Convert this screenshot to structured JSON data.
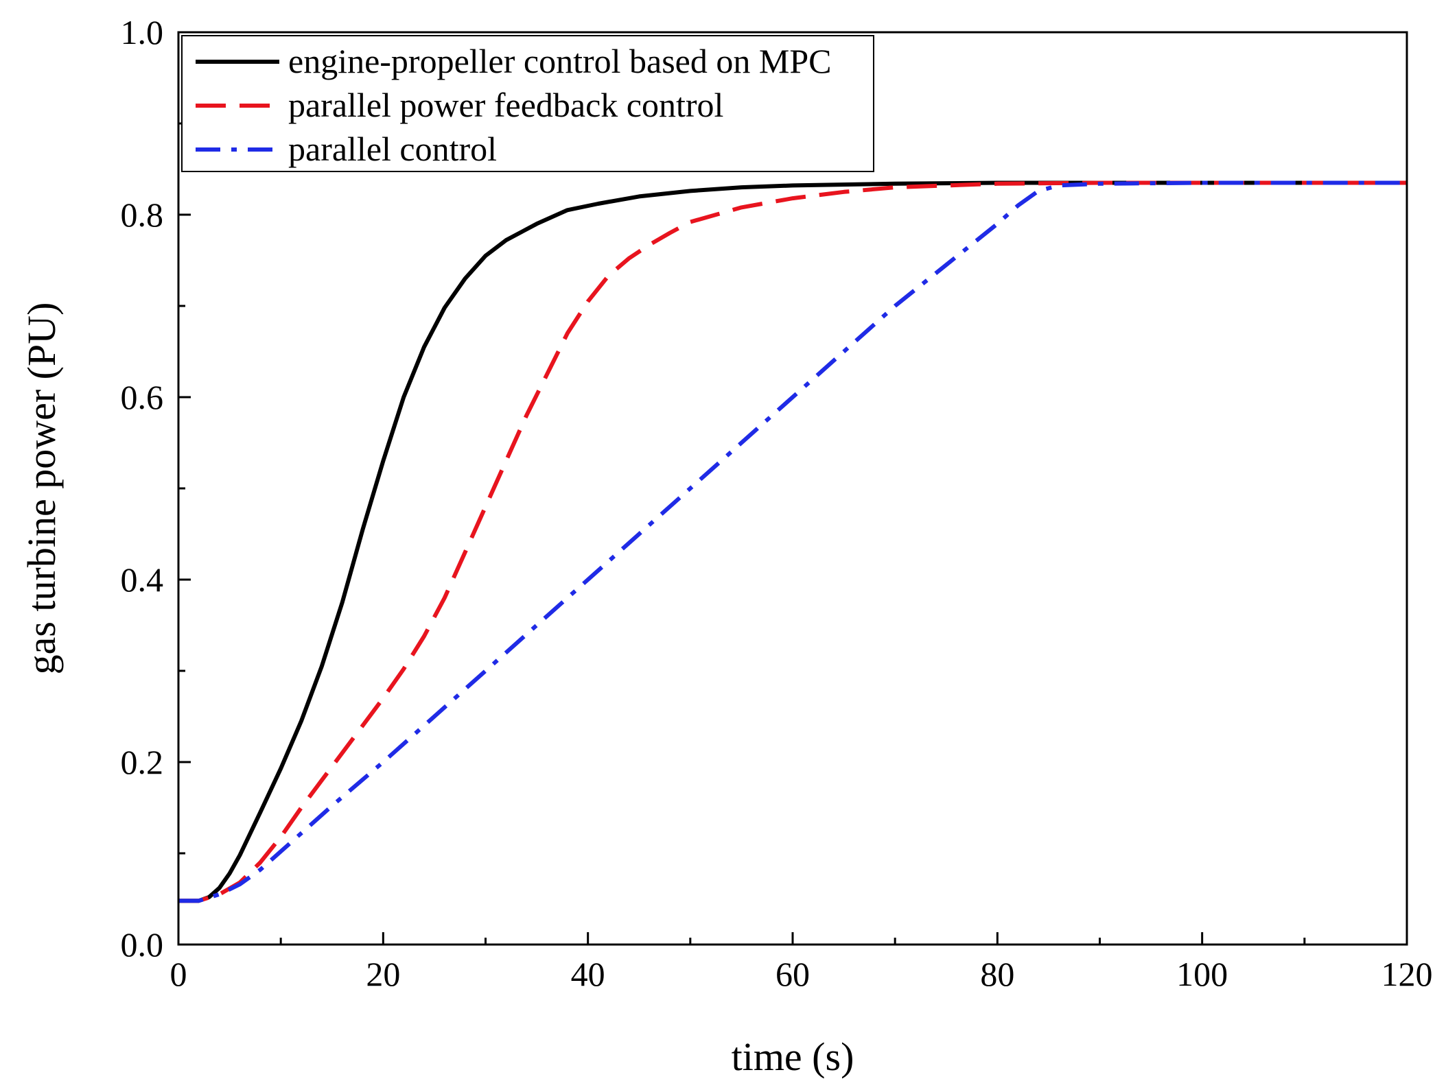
{
  "chart_data": {
    "type": "line",
    "title": "",
    "xlabel": "time (s)",
    "ylabel": "gas turbine power (PU)",
    "xlim": [
      0,
      120
    ],
    "ylim": [
      0.0,
      1.0
    ],
    "xticks": [
      0,
      20,
      40,
      60,
      80,
      100,
      120
    ],
    "xtick_labels": [
      "0",
      "20",
      "40",
      "60",
      "80",
      "100",
      "120"
    ],
    "yticks": [
      0.0,
      0.2,
      0.4,
      0.6,
      0.8,
      1.0
    ],
    "ytick_labels": [
      "0.0",
      "0.2",
      "0.4",
      "0.6",
      "0.8",
      "1.0"
    ],
    "legend_position": "top-left",
    "grid": false,
    "series": [
      {
        "name": "engine-propeller control based on MPC",
        "color": "#000000",
        "style": "solid",
        "points": [
          [
            0,
            0.048
          ],
          [
            2,
            0.048
          ],
          [
            3,
            0.052
          ],
          [
            4,
            0.062
          ],
          [
            5,
            0.078
          ],
          [
            6,
            0.098
          ],
          [
            8,
            0.145
          ],
          [
            10,
            0.193
          ],
          [
            12,
            0.245
          ],
          [
            14,
            0.305
          ],
          [
            16,
            0.375
          ],
          [
            18,
            0.455
          ],
          [
            20,
            0.53
          ],
          [
            22,
            0.6
          ],
          [
            24,
            0.655
          ],
          [
            26,
            0.698
          ],
          [
            28,
            0.73
          ],
          [
            30,
            0.755
          ],
          [
            32,
            0.772
          ],
          [
            35,
            0.79
          ],
          [
            38,
            0.805
          ],
          [
            41,
            0.812
          ],
          [
            45,
            0.82
          ],
          [
            50,
            0.826
          ],
          [
            55,
            0.83
          ],
          [
            60,
            0.832
          ],
          [
            70,
            0.834
          ],
          [
            80,
            0.835
          ],
          [
            90,
            0.835
          ],
          [
            100,
            0.835
          ],
          [
            120,
            0.835
          ]
        ]
      },
      {
        "name": "parallel power feedback control",
        "color": "#e8141e",
        "style": "dashed",
        "points": [
          [
            0,
            0.048
          ],
          [
            2,
            0.048
          ],
          [
            4,
            0.055
          ],
          [
            6,
            0.068
          ],
          [
            8,
            0.09
          ],
          [
            10,
            0.118
          ],
          [
            12,
            0.15
          ],
          [
            14,
            0.18
          ],
          [
            16,
            0.21
          ],
          [
            18,
            0.24
          ],
          [
            20,
            0.27
          ],
          [
            22,
            0.302
          ],
          [
            24,
            0.338
          ],
          [
            26,
            0.38
          ],
          [
            28,
            0.43
          ],
          [
            30,
            0.48
          ],
          [
            32,
            0.53
          ],
          [
            34,
            0.58
          ],
          [
            36,
            0.625
          ],
          [
            38,
            0.67
          ],
          [
            40,
            0.705
          ],
          [
            42,
            0.733
          ],
          [
            44,
            0.752
          ],
          [
            46,
            0.767
          ],
          [
            48,
            0.78
          ],
          [
            50,
            0.792
          ],
          [
            55,
            0.808
          ],
          [
            60,
            0.818
          ],
          [
            65,
            0.825
          ],
          [
            70,
            0.83
          ],
          [
            80,
            0.834
          ],
          [
            90,
            0.835
          ],
          [
            100,
            0.835
          ],
          [
            120,
            0.835
          ]
        ]
      },
      {
        "name": "parallel control",
        "color": "#1f2be6",
        "style": "dashdot",
        "points": [
          [
            0,
            0.048
          ],
          [
            2,
            0.048
          ],
          [
            4,
            0.055
          ],
          [
            6,
            0.066
          ],
          [
            8,
            0.082
          ],
          [
            10,
            0.102
          ],
          [
            12,
            0.122
          ],
          [
            15,
            0.152
          ],
          [
            20,
            0.2
          ],
          [
            25,
            0.25
          ],
          [
            30,
            0.3
          ],
          [
            35,
            0.35
          ],
          [
            40,
            0.4
          ],
          [
            45,
            0.45
          ],
          [
            50,
            0.5
          ],
          [
            55,
            0.55
          ],
          [
            60,
            0.6
          ],
          [
            65,
            0.65
          ],
          [
            70,
            0.7
          ],
          [
            75,
            0.745
          ],
          [
            80,
            0.79
          ],
          [
            82,
            0.81
          ],
          [
            84,
            0.826
          ],
          [
            86,
            0.832
          ],
          [
            90,
            0.834
          ],
          [
            100,
            0.835
          ],
          [
            120,
            0.835
          ]
        ]
      }
    ]
  }
}
